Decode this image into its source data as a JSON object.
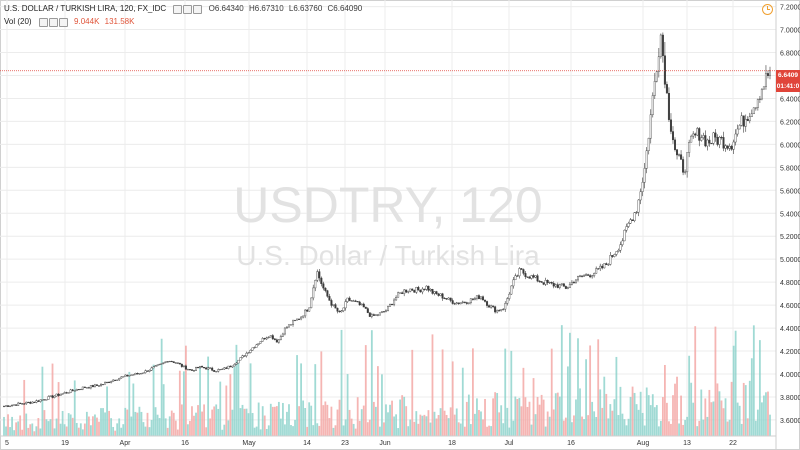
{
  "legend": {
    "title": "U.S. DOLLAR / TURKISH LIRA, 120, FX_IDC",
    "open": "O6.64340",
    "high": "H6.67310",
    "low": "L6.63760",
    "close": "C6.64090",
    "volume_label": "Vol (20)",
    "volume_value": "9.044K",
    "volume_ma": "131.58K"
  },
  "watermark": {
    "symbol": "USDTRY, 120",
    "description": "U.S. Dollar / Turkish Lira"
  },
  "price_tag": {
    "price": "6.6409",
    "countdown": "01:41:0"
  },
  "colors": {
    "up": "#26a69a",
    "down": "#ef5350",
    "candle": "#3a3a3a",
    "price_line": "#e0453a",
    "grid": "#ececec",
    "watermark": "#e2e2e2"
  },
  "chart_data": {
    "type": "candlestick",
    "title": "U.S. DOLLAR / TURKISH LIRA, 120, FX_IDC",
    "interval": "120",
    "grid": true,
    "y_ticks": [
      "3.60000",
      "3.80000",
      "4.00000",
      "4.20000",
      "4.40000",
      "4.60000",
      "4.80000",
      "5.00000",
      "5.20000",
      "5.40000",
      "5.60000",
      "5.80000",
      "6.00000",
      "6.20000",
      "6.40000",
      "6.60000",
      "6.80000",
      "7.00000",
      "7.20000"
    ],
    "ylim": [
      3.46,
      7.24
    ],
    "x_ticks": [
      "5",
      "19",
      "Apr",
      "16",
      "May",
      "14",
      "23",
      "Jun",
      "18",
      "Jul",
      "16",
      "Aug",
      "13",
      "22"
    ],
    "last_price": 6.6409,
    "close_series": [
      3.72,
      3.73,
      3.74,
      3.75,
      3.76,
      3.78,
      3.8,
      3.82,
      3.84,
      3.86,
      3.88,
      3.89,
      3.9,
      3.92,
      3.95,
      3.97,
      3.99,
      4.0,
      4.02,
      4.05,
      4.08,
      4.12,
      4.1,
      4.06,
      4.03,
      4.06,
      4.05,
      4.03,
      4.04,
      4.07,
      4.12,
      4.18,
      4.24,
      4.3,
      4.34,
      4.28,
      4.4,
      4.45,
      4.5,
      4.58,
      4.9,
      4.72,
      4.6,
      4.52,
      4.65,
      4.62,
      4.58,
      4.5,
      4.52,
      4.56,
      4.66,
      4.72,
      4.74,
      4.73,
      4.76,
      4.7,
      4.68,
      4.64,
      4.62,
      4.63,
      4.65,
      4.68,
      4.6,
      4.55,
      4.58,
      4.78,
      4.9,
      4.86,
      4.83,
      4.8,
      4.78,
      4.77,
      4.75,
      4.82,
      4.85,
      4.87,
      4.9,
      4.95,
      5.05,
      5.15,
      5.32,
      5.45,
      5.8,
      6.4,
      6.98,
      6.3,
      5.9,
      5.78,
      6.05,
      6.1,
      6.02,
      6.05,
      6.03,
      6.0,
      6.15,
      6.25,
      6.35,
      6.5,
      6.64
    ]
  }
}
